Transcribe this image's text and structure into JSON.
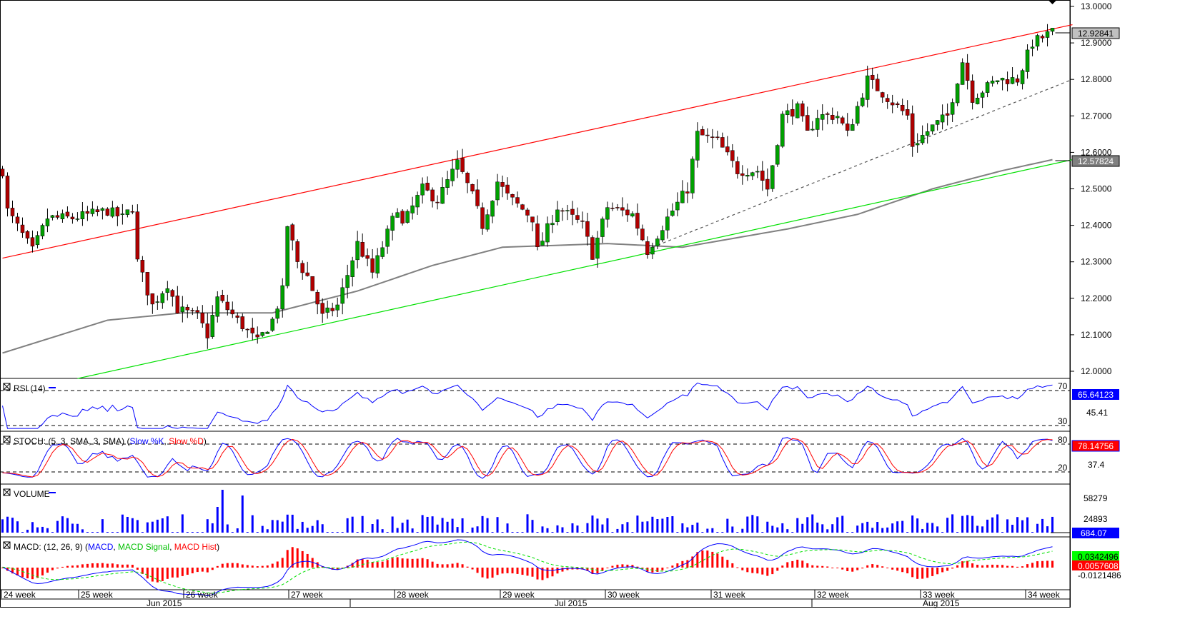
{
  "chart_data": {
    "type": "candlestick",
    "price_axis": {
      "ticks": [
        "13.0000",
        "12.9000",
        "12.8000",
        "12.7000",
        "12.6000",
        "12.5000",
        "12.4000",
        "12.3000",
        "12.2000",
        "12.1000",
        "12.0000"
      ],
      "range": [
        11.98,
        13.02
      ]
    },
    "last_price": "12.92841",
    "ma_value": "12.57824",
    "x_axis": {
      "weeks": [
        "24 week",
        "25 week",
        "26 week",
        "27 week",
        "28 week",
        "29 week",
        "30 week",
        "31 week",
        "32 week",
        "33 week",
        "34 week"
      ],
      "months": [
        "Jun 2015",
        "Jul 2015",
        "Aug 2015"
      ]
    },
    "bars": 214,
    "close_path": [
      [
        0,
        12.55
      ],
      [
        1,
        12.44
      ],
      [
        6,
        12.33
      ],
      [
        9,
        12.42
      ],
      [
        14,
        12.42
      ],
      [
        21,
        12.44
      ],
      [
        24,
        12.42
      ],
      [
        26,
        12.45
      ],
      [
        27,
        12.3
      ],
      [
        30,
        12.18
      ],
      [
        33,
        12.24
      ],
      [
        35,
        12.17
      ],
      [
        39,
        12.15
      ],
      [
        41,
        12.1
      ],
      [
        43,
        12.2
      ],
      [
        47,
        12.14
      ],
      [
        51,
        12.08
      ],
      [
        54,
        12.14
      ],
      [
        56,
        12.22
      ],
      [
        57,
        12.4
      ],
      [
        59,
        12.3
      ],
      [
        61,
        12.26
      ],
      [
        64,
        12.15
      ],
      [
        67,
        12.18
      ],
      [
        71,
        12.35
      ],
      [
        74,
        12.27
      ],
      [
        79,
        12.45
      ],
      [
        80,
        12.4
      ],
      [
        84,
        12.5
      ],
      [
        87,
        12.47
      ],
      [
        91,
        12.57
      ],
      [
        94,
        12.48
      ],
      [
        96,
        12.4
      ],
      [
        99,
        12.52
      ],
      [
        101,
        12.48
      ],
      [
        106,
        12.42
      ],
      [
        107,
        12.33
      ],
      [
        111,
        12.45
      ],
      [
        116,
        12.4
      ],
      [
        118,
        12.32
      ],
      [
        121,
        12.45
      ],
      [
        126,
        12.43
      ],
      [
        129,
        12.33
      ],
      [
        133,
        12.42
      ],
      [
        137,
        12.5
      ],
      [
        139,
        12.65
      ],
      [
        143,
        12.63
      ],
      [
        147,
        12.55
      ],
      [
        151,
        12.55
      ],
      [
        153,
        12.5
      ],
      [
        156,
        12.7
      ],
      [
        159,
        12.72
      ],
      [
        161,
        12.65
      ],
      [
        163,
        12.7
      ],
      [
        167,
        12.7
      ],
      [
        169,
        12.65
      ],
      [
        173,
        12.8
      ],
      [
        177,
        12.75
      ],
      [
        181,
        12.7
      ],
      [
        182,
        12.62
      ],
      [
        186,
        12.67
      ],
      [
        189,
        12.7
      ],
      [
        192,
        12.85
      ],
      [
        194,
        12.75
      ],
      [
        199,
        12.8
      ],
      [
        203,
        12.8
      ],
      [
        206,
        12.9
      ],
      [
        210,
        12.93
      ]
    ],
    "moving_average": [
      [
        0,
        12.05
      ],
      [
        21,
        12.14
      ],
      [
        36,
        12.16
      ],
      [
        54,
        12.16
      ],
      [
        71,
        12.22
      ],
      [
        86,
        12.29
      ],
      [
        100,
        12.34
      ],
      [
        121,
        12.35
      ],
      [
        136,
        12.34
      ],
      [
        157,
        12.39
      ],
      [
        171,
        12.43
      ],
      [
        186,
        12.5
      ],
      [
        200,
        12.55
      ],
      [
        210,
        12.58
      ]
    ],
    "trendlines": {
      "upper_red": [
        [
          0,
          12.31
        ],
        [
          214,
          12.95
        ]
      ],
      "lower_green": [
        [
          15,
          11.98
        ],
        [
          214,
          12.58
        ]
      ],
      "dashed": [
        [
          130,
          12.34
        ],
        [
          214,
          12.8
        ]
      ]
    },
    "panels": {
      "rsi": {
        "label": "RSI (14)",
        "levels": [
          "70",
          "30"
        ],
        "mid": "45.41",
        "value": "65.64123"
      },
      "stoch": {
        "label": "STOCH: (5, 3, SMA, 3, SMA)",
        "k": "Slow %K",
        "d": "Slow %D",
        "levels": [
          "80",
          "20"
        ],
        "mid": "37.4",
        "value": "78.14756"
      },
      "volume": {
        "label": "VOLUME",
        "ticks": [
          "58279",
          "24893"
        ],
        "value": "684.07"
      },
      "macd": {
        "label": "MACD: (12, 26, 9)",
        "macd": "MACD",
        "signal": "MACD Signal",
        "hist": "MACD Hist",
        "low": "-0.0121486",
        "value_signal": "0.0342496",
        "value_hist": "0.0057608"
      }
    }
  },
  "colors": {
    "up": "#00a000",
    "down": "#b00000",
    "red": "#ff0000",
    "green": "#00e000",
    "ma": "#808080",
    "blue": "#0000ff"
  }
}
